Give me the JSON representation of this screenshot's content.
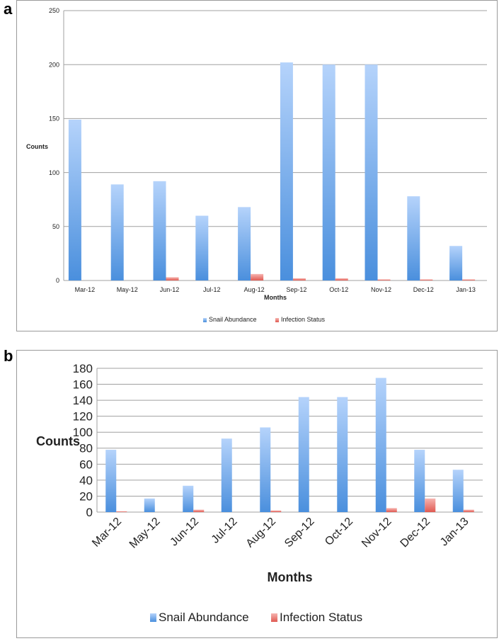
{
  "panels": [
    {
      "letter": "a"
    },
    {
      "letter": "b"
    }
  ],
  "colors": {
    "snail_top": "#b5d3fb",
    "snail_bottom": "#4a8fdd",
    "infection_top": "#f6b4b0",
    "infection_bottom": "#e05a52",
    "grid": "#a0a0a0"
  },
  "chart_data": [
    {
      "type": "bar",
      "panel": "a",
      "categories": [
        "Mar-12",
        "May-12",
        "Jun-12",
        "Jul-12",
        "Aug-12",
        "Sep-12",
        "Oct-12",
        "Nov-12",
        "Dec-12",
        "Jan-13"
      ],
      "series": [
        {
          "name": "Snail Abundance",
          "values": [
            149,
            89,
            92,
            60,
            68,
            202,
            200,
            200,
            78,
            32
          ]
        },
        {
          "name": "Infection Status",
          "values": [
            0,
            0,
            3,
            0,
            6,
            2,
            2,
            1,
            1,
            1
          ]
        }
      ],
      "xlabel": "Months",
      "ylabel": "Counts",
      "ylim": [
        0,
        250
      ],
      "yticks": [
        "0",
        "50",
        "100",
        "150",
        "200",
        "250"
      ],
      "grid": true,
      "legend_position": "bottom"
    },
    {
      "type": "bar",
      "panel": "b",
      "categories": [
        "Mar-12",
        "May-12",
        "Jun-12",
        "Jul-12",
        "Aug-12",
        "Sep-12",
        "Oct-12",
        "Nov-12",
        "Dec-12",
        "Jan-13"
      ],
      "series": [
        {
          "name": "Snail Abundance",
          "values": [
            78,
            17,
            33,
            92,
            106,
            144,
            144,
            168,
            78,
            53
          ]
        },
        {
          "name": "Infection Status",
          "values": [
            1,
            0,
            3,
            0,
            2,
            0,
            0,
            5,
            17,
            3
          ]
        }
      ],
      "xlabel": "Months",
      "ylabel": "Counts",
      "ylim": [
        0,
        180
      ],
      "yticks": [
        "0",
        "20",
        "40",
        "60",
        "80",
        "100",
        "120",
        "140",
        "160",
        "180"
      ],
      "grid": true,
      "legend_position": "bottom"
    }
  ]
}
